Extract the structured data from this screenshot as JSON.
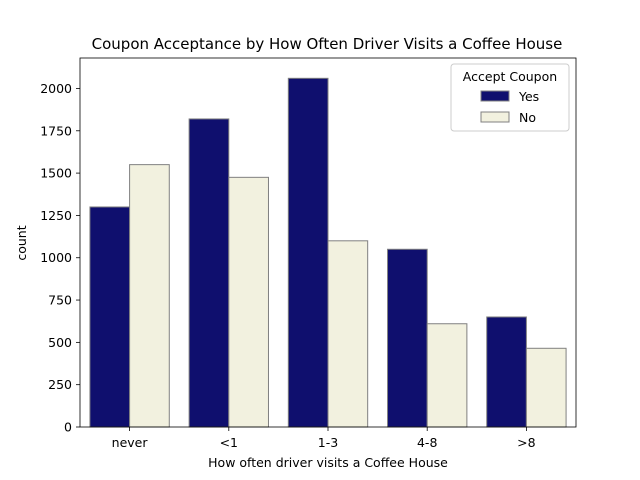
{
  "chart_data": {
    "type": "bar",
    "title": "Coupon Acceptance by How Often Driver Visits a Coffee House",
    "xlabel": "How often driver visits a Coffee House",
    "ylabel": "count",
    "categories": [
      "never",
      "<1",
      "1-3",
      "4-8",
      ">8"
    ],
    "series": [
      {
        "name": "Yes",
        "color": "#0f0f6e",
        "values": [
          1300,
          1820,
          2060,
          1050,
          650
        ]
      },
      {
        "name": "No",
        "color": "#f2f1df",
        "values": [
          1550,
          1475,
          1100,
          610,
          465
        ]
      }
    ],
    "ylim": [
      0,
      2180
    ],
    "yticks": [
      0,
      250,
      500,
      750,
      1000,
      1250,
      1500,
      1750,
      2000
    ],
    "legend": {
      "title": "Accept Coupon",
      "position": "top-right"
    },
    "bar_edge_color": "#808080",
    "grid": false
  }
}
